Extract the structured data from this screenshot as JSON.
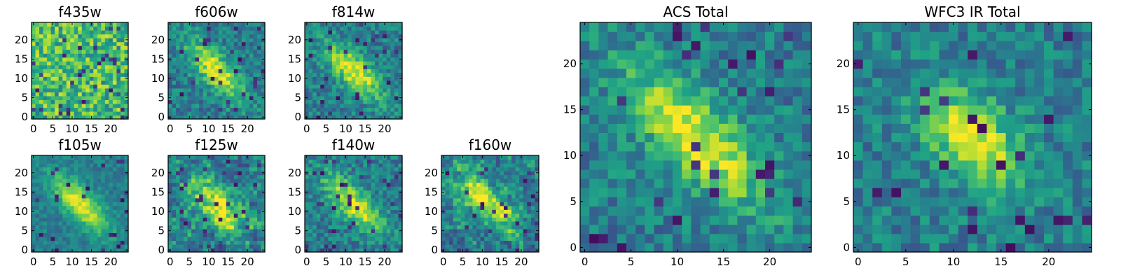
{
  "chart_data": [
    {
      "type": "heatmap",
      "title": "f435w",
      "xlim": [
        0,
        24
      ],
      "ylim": [
        0,
        24
      ],
      "xticks": [
        0,
        5,
        10,
        15,
        20
      ],
      "yticks": [
        0,
        5,
        10,
        15,
        20
      ],
      "grid": false,
      "colormap": "viridis",
      "pattern": "noise",
      "seed": 11
    },
    {
      "type": "heatmap",
      "title": "f606w",
      "xlim": [
        0,
        24
      ],
      "ylim": [
        0,
        24
      ],
      "xticks": [
        0,
        5,
        10,
        15,
        20
      ],
      "yticks": [
        0,
        5,
        10,
        15,
        20
      ],
      "grid": false,
      "colormap": "viridis",
      "pattern": "elongated-source",
      "seed": 23
    },
    {
      "type": "heatmap",
      "title": "f814w",
      "xlim": [
        0,
        24
      ],
      "ylim": [
        0,
        24
      ],
      "xticks": [
        0,
        5,
        10,
        15,
        20
      ],
      "yticks": [
        0,
        5,
        10,
        15,
        20
      ],
      "grid": false,
      "colormap": "viridis",
      "pattern": "elongated-source",
      "seed": 37
    },
    {
      "type": "heatmap",
      "title": "f105w",
      "xlim": [
        0,
        24
      ],
      "ylim": [
        0,
        24
      ],
      "xticks": [
        0,
        5,
        10,
        15,
        20
      ],
      "yticks": [
        0,
        5,
        10,
        15,
        20
      ],
      "grid": false,
      "colormap": "viridis",
      "pattern": "smooth-source",
      "seed": 41
    },
    {
      "type": "heatmap",
      "title": "f125w",
      "xlim": [
        0,
        24
      ],
      "ylim": [
        0,
        24
      ],
      "xticks": [
        0,
        5,
        10,
        15,
        20
      ],
      "yticks": [
        0,
        5,
        10,
        15,
        20
      ],
      "grid": false,
      "colormap": "viridis",
      "pattern": "blocky-source",
      "seed": 53
    },
    {
      "type": "heatmap",
      "title": "f140w",
      "xlim": [
        0,
        24
      ],
      "ylim": [
        0,
        24
      ],
      "xticks": [
        0,
        5,
        10,
        15,
        20
      ],
      "yticks": [
        0,
        5,
        10,
        15,
        20
      ],
      "grid": false,
      "colormap": "viridis",
      "pattern": "elongated-source",
      "seed": 67
    },
    {
      "type": "heatmap",
      "title": "f160w",
      "xlim": [
        0,
        24
      ],
      "ylim": [
        0,
        24
      ],
      "xticks": [
        0,
        5,
        10,
        15,
        20
      ],
      "yticks": [
        0,
        5,
        10,
        15,
        20
      ],
      "grid": false,
      "colormap": "viridis",
      "pattern": "blocky-source",
      "seed": 79
    },
    {
      "type": "heatmap",
      "title": "ACS Total",
      "xlim": [
        0,
        24
      ],
      "ylim": [
        0,
        24
      ],
      "xticks": [
        0,
        5,
        10,
        15,
        20
      ],
      "yticks": [
        0,
        5,
        10,
        15,
        20
      ],
      "grid": false,
      "colormap": "viridis",
      "pattern": "elongated-source",
      "seed": 97
    },
    {
      "type": "heatmap",
      "title": "WFC3 IR Total",
      "xlim": [
        0,
        24
      ],
      "ylim": [
        0,
        24
      ],
      "xticks": [
        0,
        5,
        10,
        15,
        20
      ],
      "yticks": [
        0,
        5,
        10,
        15,
        20
      ],
      "grid": false,
      "colormap": "viridis",
      "pattern": "source",
      "seed": 113
    }
  ]
}
